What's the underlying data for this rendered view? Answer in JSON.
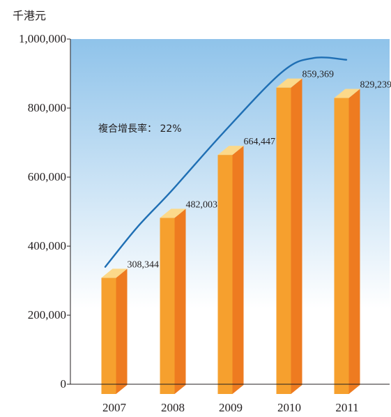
{
  "chart_data": {
    "type": "bar",
    "unit_label": "千港元",
    "categories": [
      "2007",
      "2008",
      "2009",
      "2010",
      "2011"
    ],
    "values": [
      308344,
      482003,
      664447,
      859369,
      829239
    ],
    "value_labels": [
      "308,344",
      "482,003",
      "664,447",
      "859,369",
      "829,239"
    ],
    "ylim": [
      0,
      1000000
    ],
    "y_ticks": [
      0,
      200000,
      400000,
      600000,
      800000,
      1000000
    ],
    "y_tick_labels": [
      "0",
      "200,000",
      "400,000",
      "600,000",
      "800,000",
      "1,000,000"
    ],
    "annotation": "複合增長率： 22%",
    "trend_curve": true,
    "grid": false,
    "colors": {
      "bar_front": "#f6a02e",
      "bar_side": "#ee7b20",
      "bar_top": "#fcd98a",
      "curve": "#1f6fb4",
      "bg_top": "#8fc3ea",
      "bg_bottom": "#ffffff"
    }
  }
}
